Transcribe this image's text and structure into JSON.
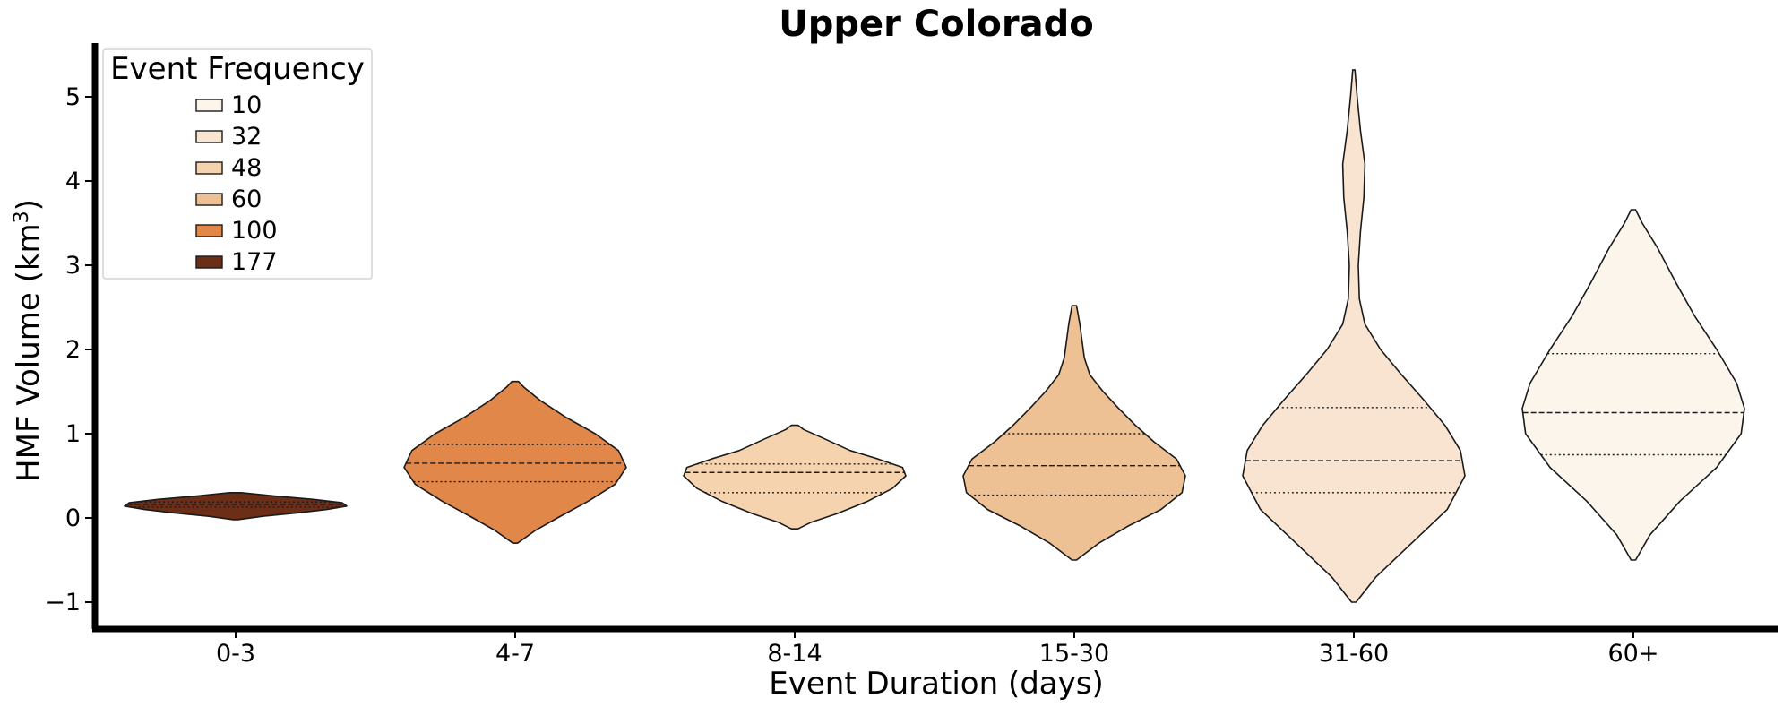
{
  "chart_data": {
    "type": "violin",
    "title": "Upper Colorado",
    "xlabel": "Event Duration (days)",
    "ylabel_main": "HMF Volume (km",
    "ylabel_sup": "3",
    "ylabel_close": ")",
    "ylim": [
      -1.35,
      5.6
    ],
    "yticks": [
      -1,
      0,
      1,
      2,
      3,
      4,
      5
    ],
    "ytick_labels": [
      "−1",
      "0",
      "1",
      "2",
      "3",
      "4",
      "5"
    ],
    "categories": [
      "0-3",
      "4-7",
      "8-14",
      "15-30",
      "31-60",
      "60+"
    ],
    "legend": {
      "title": "Event Frequency",
      "placement": "upper-left",
      "entries": [
        {
          "label": "10",
          "color": "#fcf5ec"
        },
        {
          "label": "32",
          "color": "#f8e4d0"
        },
        {
          "label": "48",
          "color": "#f5d3ae"
        },
        {
          "label": "60",
          "color": "#eec195"
        },
        {
          "label": "100",
          "color": "#e1874a"
        },
        {
          "label": "177",
          "color": "#6d2e18"
        }
      ]
    },
    "violins": [
      {
        "category": "0-3",
        "frequency": 177,
        "color": "#6d2e18",
        "ymin": -0.02,
        "ymax": 0.3,
        "q1": 0.13,
        "median": 0.16,
        "q3": 0.19,
        "profile": [
          [
            -0.02,
            0.02
          ],
          [
            0.02,
            0.25
          ],
          [
            0.06,
            0.55
          ],
          [
            0.1,
            0.82
          ],
          [
            0.14,
            1.0
          ],
          [
            0.18,
            0.96
          ],
          [
            0.22,
            0.7
          ],
          [
            0.26,
            0.35
          ],
          [
            0.3,
            0.05
          ]
        ]
      },
      {
        "category": "4-7",
        "frequency": 100,
        "color": "#e1874a",
        "ymin": -0.3,
        "ymax": 1.62,
        "q1": 0.43,
        "median": 0.65,
        "q3": 0.87,
        "profile": [
          [
            -0.3,
            0.02
          ],
          [
            -0.15,
            0.18
          ],
          [
            0.0,
            0.38
          ],
          [
            0.2,
            0.66
          ],
          [
            0.4,
            0.9
          ],
          [
            0.6,
            1.0
          ],
          [
            0.8,
            0.93
          ],
          [
            1.0,
            0.72
          ],
          [
            1.2,
            0.45
          ],
          [
            1.4,
            0.22
          ],
          [
            1.55,
            0.08
          ],
          [
            1.62,
            0.03
          ]
        ]
      },
      {
        "category": "8-14",
        "frequency": 48,
        "color": "#f5d3ae",
        "ymin": -0.13,
        "ymax": 1.1,
        "q1": 0.3,
        "median": 0.54,
        "q3": 0.64,
        "profile": [
          [
            -0.13,
            0.03
          ],
          [
            -0.05,
            0.15
          ],
          [
            0.05,
            0.38
          ],
          [
            0.2,
            0.66
          ],
          [
            0.35,
            0.88
          ],
          [
            0.5,
            1.0
          ],
          [
            0.6,
            0.97
          ],
          [
            0.7,
            0.75
          ],
          [
            0.8,
            0.5
          ],
          [
            0.95,
            0.25
          ],
          [
            1.05,
            0.08
          ],
          [
            1.1,
            0.03
          ]
        ]
      },
      {
        "category": "15-30",
        "frequency": 60,
        "color": "#eec195",
        "ymin": -0.5,
        "ymax": 2.52,
        "q1": 0.27,
        "median": 0.62,
        "q3": 1.0,
        "profile": [
          [
            -0.5,
            0.02
          ],
          [
            -0.3,
            0.22
          ],
          [
            -0.1,
            0.48
          ],
          [
            0.1,
            0.78
          ],
          [
            0.3,
            0.97
          ],
          [
            0.5,
            1.0
          ],
          [
            0.7,
            0.92
          ],
          [
            0.9,
            0.72
          ],
          [
            1.1,
            0.55
          ],
          [
            1.3,
            0.4
          ],
          [
            1.5,
            0.26
          ],
          [
            1.7,
            0.14
          ],
          [
            1.9,
            0.09
          ],
          [
            2.1,
            0.07
          ],
          [
            2.3,
            0.05
          ],
          [
            2.52,
            0.02
          ]
        ]
      },
      {
        "category": "31-60",
        "frequency": 32,
        "color": "#f8e4d0",
        "ymin": -1.0,
        "ymax": 5.32,
        "q1": 0.3,
        "median": 0.68,
        "q3": 1.31,
        "profile": [
          [
            -1.0,
            0.02
          ],
          [
            -0.7,
            0.2
          ],
          [
            -0.3,
            0.52
          ],
          [
            0.1,
            0.84
          ],
          [
            0.5,
            1.0
          ],
          [
            0.8,
            0.96
          ],
          [
            1.1,
            0.82
          ],
          [
            1.4,
            0.63
          ],
          [
            1.7,
            0.43
          ],
          [
            2.0,
            0.24
          ],
          [
            2.3,
            0.1
          ],
          [
            2.6,
            0.05
          ],
          [
            3.0,
            0.04
          ],
          [
            3.4,
            0.06
          ],
          [
            3.8,
            0.09
          ],
          [
            4.2,
            0.1
          ],
          [
            4.6,
            0.06
          ],
          [
            5.0,
            0.03
          ],
          [
            5.32,
            0.01
          ]
        ]
      },
      {
        "category": "60+",
        "frequency": 10,
        "color": "#fcf5ec",
        "ymin": -0.5,
        "ymax": 3.66,
        "q1": 0.75,
        "median": 1.25,
        "q3": 1.95,
        "profile": [
          [
            -0.5,
            0.02
          ],
          [
            -0.2,
            0.15
          ],
          [
            0.2,
            0.42
          ],
          [
            0.6,
            0.75
          ],
          [
            1.0,
            0.97
          ],
          [
            1.3,
            1.0
          ],
          [
            1.6,
            0.93
          ],
          [
            2.0,
            0.75
          ],
          [
            2.4,
            0.55
          ],
          [
            2.8,
            0.38
          ],
          [
            3.2,
            0.22
          ],
          [
            3.5,
            0.08
          ],
          [
            3.66,
            0.02
          ]
        ]
      }
    ],
    "grid": false
  }
}
